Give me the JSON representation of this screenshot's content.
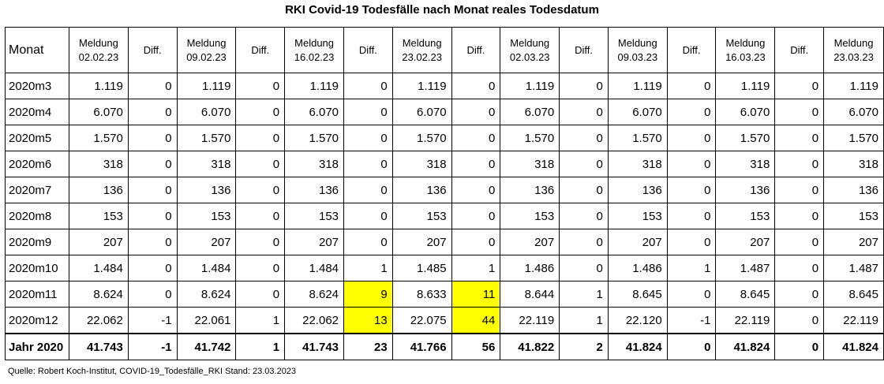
{
  "title": "RKI Covid-19 Todesfälle nach Monat reales Todesdatum",
  "source": "Quelle: Robert Koch-Institut, COVID-19_Todesfälle_RKI Stand: 23.03.2023",
  "header": {
    "first": "Monat",
    "columns": [
      {
        "l1": "Meldung",
        "l2": "02.02.23"
      },
      {
        "l1": "Diff.",
        "l2": ""
      },
      {
        "l1": "Meldung",
        "l2": "09.02.23"
      },
      {
        "l1": "Diff.",
        "l2": ""
      },
      {
        "l1": "Meldung",
        "l2": "16.02.23"
      },
      {
        "l1": "Diff.",
        "l2": ""
      },
      {
        "l1": "Meldung",
        "l2": "23.02.23"
      },
      {
        "l1": "Diff.",
        "l2": ""
      },
      {
        "l1": "Meldung",
        "l2": "02.03.23"
      },
      {
        "l1": "Diff.",
        "l2": ""
      },
      {
        "l1": "Meldung",
        "l2": "09.03.23"
      },
      {
        "l1": "Diff.",
        "l2": ""
      },
      {
        "l1": "Meldung",
        "l2": "16.03.23"
      },
      {
        "l1": "Diff.",
        "l2": ""
      },
      {
        "l1": "Meldung",
        "l2": "23.03.23"
      }
    ]
  },
  "highlight_color": "#ffff00",
  "rows": [
    {
      "label": "2020m3",
      "cells": [
        {
          "v": "1.119"
        },
        {
          "v": "0"
        },
        {
          "v": "1.119"
        },
        {
          "v": "0"
        },
        {
          "v": "1.119"
        },
        {
          "v": "0"
        },
        {
          "v": "1.119"
        },
        {
          "v": "0"
        },
        {
          "v": "1.119"
        },
        {
          "v": "0"
        },
        {
          "v": "1.119"
        },
        {
          "v": "0"
        },
        {
          "v": "1.119"
        },
        {
          "v": "0"
        },
        {
          "v": "1.119"
        }
      ]
    },
    {
      "label": "2020m4",
      "cells": [
        {
          "v": "6.070"
        },
        {
          "v": "0"
        },
        {
          "v": "6.070"
        },
        {
          "v": "0"
        },
        {
          "v": "6.070"
        },
        {
          "v": "0"
        },
        {
          "v": "6.070"
        },
        {
          "v": "0"
        },
        {
          "v": "6.070"
        },
        {
          "v": "0"
        },
        {
          "v": "6.070"
        },
        {
          "v": "0"
        },
        {
          "v": "6.070"
        },
        {
          "v": "0"
        },
        {
          "v": "6.070"
        }
      ]
    },
    {
      "label": "2020m5",
      "cells": [
        {
          "v": "1.570"
        },
        {
          "v": "0"
        },
        {
          "v": "1.570"
        },
        {
          "v": "0"
        },
        {
          "v": "1.570"
        },
        {
          "v": "0"
        },
        {
          "v": "1.570"
        },
        {
          "v": "0"
        },
        {
          "v": "1.570"
        },
        {
          "v": "0"
        },
        {
          "v": "1.570"
        },
        {
          "v": "0"
        },
        {
          "v": "1.570"
        },
        {
          "v": "0"
        },
        {
          "v": "1.570"
        }
      ]
    },
    {
      "label": "2020m6",
      "cells": [
        {
          "v": "318"
        },
        {
          "v": "0"
        },
        {
          "v": "318"
        },
        {
          "v": "0"
        },
        {
          "v": "318"
        },
        {
          "v": "0"
        },
        {
          "v": "318"
        },
        {
          "v": "0"
        },
        {
          "v": "318"
        },
        {
          "v": "0"
        },
        {
          "v": "318"
        },
        {
          "v": "0"
        },
        {
          "v": "318"
        },
        {
          "v": "0"
        },
        {
          "v": "318"
        }
      ]
    },
    {
      "label": "2020m7",
      "cells": [
        {
          "v": "136"
        },
        {
          "v": "0"
        },
        {
          "v": "136"
        },
        {
          "v": "0"
        },
        {
          "v": "136"
        },
        {
          "v": "0"
        },
        {
          "v": "136"
        },
        {
          "v": "0"
        },
        {
          "v": "136"
        },
        {
          "v": "0"
        },
        {
          "v": "136"
        },
        {
          "v": "0"
        },
        {
          "v": "136"
        },
        {
          "v": "0"
        },
        {
          "v": "136"
        }
      ]
    },
    {
      "label": "2020m8",
      "cells": [
        {
          "v": "153"
        },
        {
          "v": "0"
        },
        {
          "v": "153"
        },
        {
          "v": "0"
        },
        {
          "v": "153"
        },
        {
          "v": "0"
        },
        {
          "v": "153"
        },
        {
          "v": "0"
        },
        {
          "v": "153"
        },
        {
          "v": "0"
        },
        {
          "v": "153"
        },
        {
          "v": "0"
        },
        {
          "v": "153"
        },
        {
          "v": "0"
        },
        {
          "v": "153"
        }
      ]
    },
    {
      "label": "2020m9",
      "cells": [
        {
          "v": "207"
        },
        {
          "v": "0"
        },
        {
          "v": "207"
        },
        {
          "v": "0"
        },
        {
          "v": "207"
        },
        {
          "v": "0"
        },
        {
          "v": "207"
        },
        {
          "v": "0"
        },
        {
          "v": "207"
        },
        {
          "v": "0"
        },
        {
          "v": "207"
        },
        {
          "v": "0"
        },
        {
          "v": "207"
        },
        {
          "v": "0"
        },
        {
          "v": "207"
        }
      ]
    },
    {
      "label": "2020m10",
      "cells": [
        {
          "v": "1.484"
        },
        {
          "v": "0"
        },
        {
          "v": "1.484"
        },
        {
          "v": "0"
        },
        {
          "v": "1.484"
        },
        {
          "v": "1"
        },
        {
          "v": "1.485"
        },
        {
          "v": "1"
        },
        {
          "v": "1.486"
        },
        {
          "v": "0"
        },
        {
          "v": "1.486"
        },
        {
          "v": "1"
        },
        {
          "v": "1.487"
        },
        {
          "v": "0"
        },
        {
          "v": "1.487"
        }
      ]
    },
    {
      "label": "2020m11",
      "cells": [
        {
          "v": "8.624"
        },
        {
          "v": "0"
        },
        {
          "v": "8.624"
        },
        {
          "v": "0"
        },
        {
          "v": "8.624"
        },
        {
          "v": "9",
          "hl": true
        },
        {
          "v": "8.633"
        },
        {
          "v": "11",
          "hl": true
        },
        {
          "v": "8.644"
        },
        {
          "v": "1"
        },
        {
          "v": "8.645"
        },
        {
          "v": "0"
        },
        {
          "v": "8.645"
        },
        {
          "v": "0"
        },
        {
          "v": "8.645"
        }
      ]
    },
    {
      "label": "2020m12",
      "cells": [
        {
          "v": "22.062"
        },
        {
          "v": "-1"
        },
        {
          "v": "22.061"
        },
        {
          "v": "1"
        },
        {
          "v": "22.062"
        },
        {
          "v": "13",
          "hl": true
        },
        {
          "v": "22.075"
        },
        {
          "v": "44",
          "hl": true
        },
        {
          "v": "22.119"
        },
        {
          "v": "1"
        },
        {
          "v": "22.120"
        },
        {
          "v": "-1"
        },
        {
          "v": "22.119"
        },
        {
          "v": "0"
        },
        {
          "v": "22.119"
        }
      ]
    }
  ],
  "total": {
    "label": "Jahr 2020",
    "cells": [
      {
        "v": "41.743"
      },
      {
        "v": "-1"
      },
      {
        "v": "41.742"
      },
      {
        "v": "1"
      },
      {
        "v": "41.743"
      },
      {
        "v": "23"
      },
      {
        "v": "41.766"
      },
      {
        "v": "56"
      },
      {
        "v": "41.822"
      },
      {
        "v": "2"
      },
      {
        "v": "41.824"
      },
      {
        "v": "0"
      },
      {
        "v": "41.824"
      },
      {
        "v": "0"
      },
      {
        "v": "41.824"
      }
    ]
  }
}
